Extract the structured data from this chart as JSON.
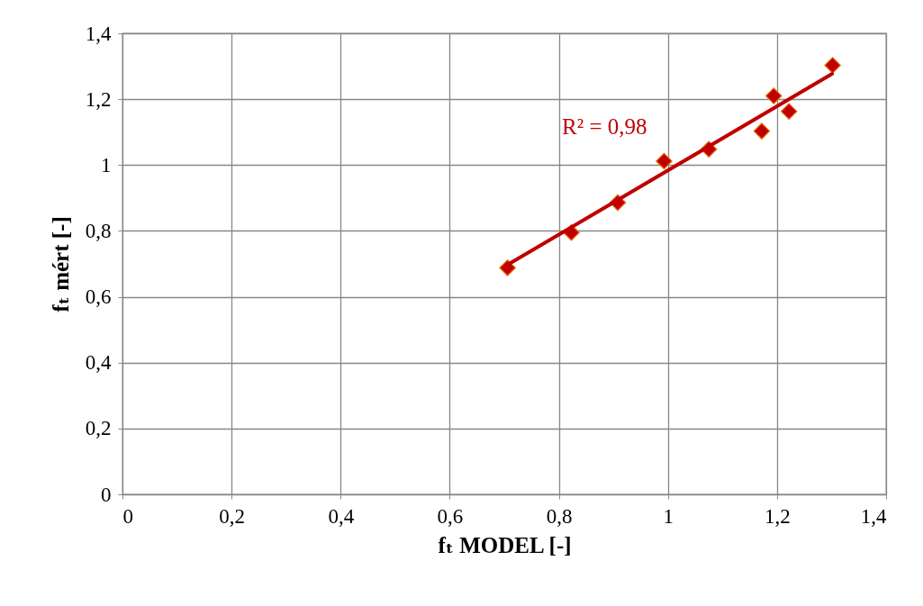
{
  "chart_data": {
    "type": "scatter",
    "xlabel": "fₜ MODEL [-]",
    "ylabel": "fₜ mért [-]",
    "series": [
      {
        "color": "#c00000",
        "marker": "diamond",
        "x": [
          0.706,
          0.823,
          0.908,
          0.993,
          1.075,
          1.172,
          1.194,
          1.222,
          1.302
        ],
        "values": [
          0.688,
          0.795,
          0.886,
          1.012,
          1.048,
          1.103,
          1.21,
          1.163,
          1.303
        ]
      },
      {
        "type": "line",
        "color": "#c00000",
        "marker": "none",
        "line_style": "solid",
        "x": [
          0.706,
          1.301
        ],
        "values": [
          0.697,
          1.277
        ]
      }
    ],
    "annotations": [
      "R² = 0,98"
    ],
    "xlim": [
      0,
      1.4
    ],
    "ylim": [
      0,
      1.4
    ],
    "xticks": [
      0,
      {
        "value": 0.2,
        "label": "0,2"
      },
      {
        "value": 0.4,
        "label": "0,4"
      },
      {
        "value": 0.6,
        "label": "0,6"
      },
      {
        "value": 0.8,
        "label": "0,8"
      },
      1,
      {
        "value": 1.2,
        "label": "1,2"
      },
      {
        "value": 1.4,
        "label": "1,4"
      }
    ],
    "yticks": [
      0,
      {
        "value": 0.2,
        "label": "0,2"
      },
      {
        "value": 0.4,
        "label": "0,4"
      },
      {
        "value": 0.6,
        "label": "0,6"
      },
      {
        "value": 0.8,
        "label": "0,8"
      },
      1,
      {
        "value": 1.2,
        "label": "1,2"
      },
      {
        "value": 1.4,
        "label": "1,4"
      }
    ],
    "grid": true
  }
}
